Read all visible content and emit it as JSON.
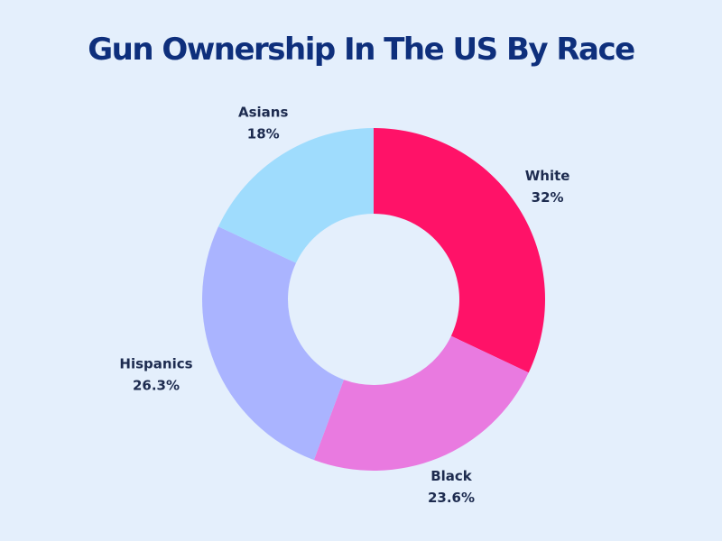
{
  "chart_data": {
    "type": "donut",
    "title": "Gun Ownership In The US By Race",
    "categories": [
      "White",
      "Black",
      "Hispanics",
      "Asians"
    ],
    "values": [
      32,
      23.6,
      26.3,
      18
    ],
    "value_labels": [
      "32%",
      "23.6%",
      "26.3%",
      "18%"
    ],
    "colors": [
      "#ff1268",
      "#e97ae0",
      "#aab4ff",
      "#9fdcfd"
    ]
  }
}
